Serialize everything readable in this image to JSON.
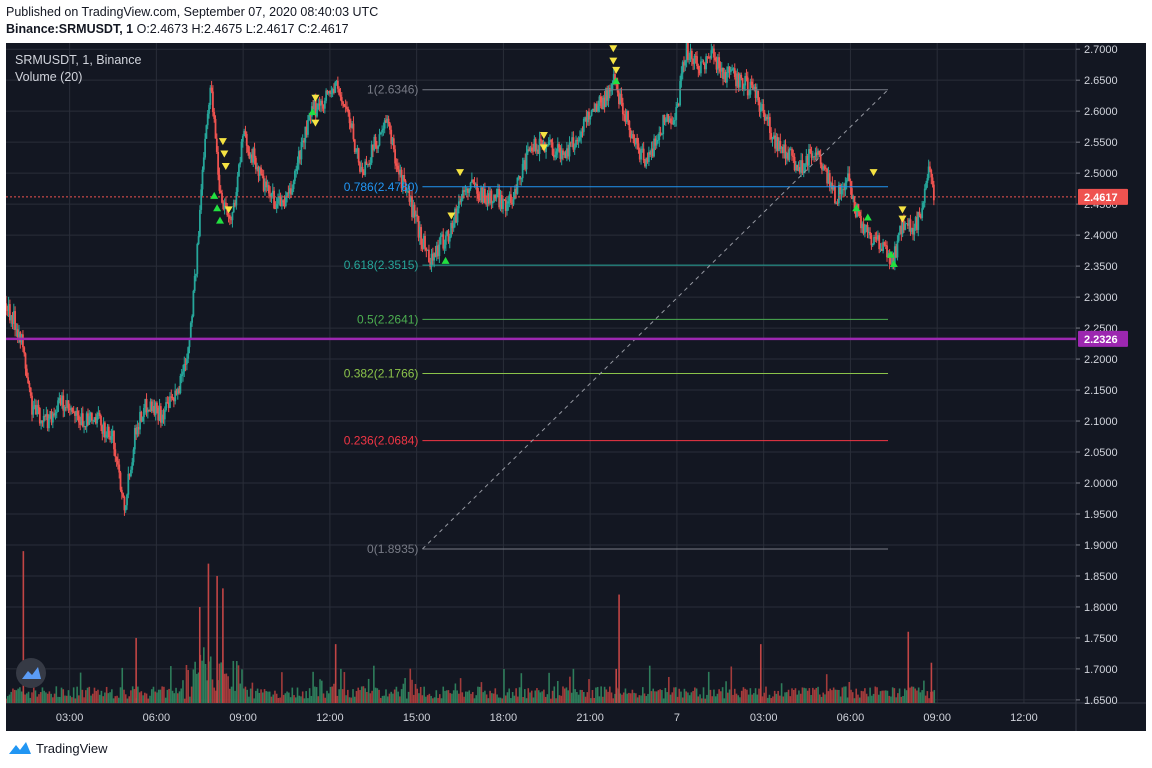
{
  "header": {
    "published": "Published on TradingView.com, September 07, 2020 08:40:03 UTC",
    "symbol_line_prefix": "Binance:SRMUSDT, 1",
    "ohlc": {
      "o": "O:2.4673",
      "h": "H:2.4675",
      "l": "L:2.4617",
      "c": "C:2.4617"
    }
  },
  "footer": {
    "brand": "TradingView"
  },
  "colors": {
    "background": "#131722",
    "grid": "#2a2e39",
    "up": "#26a69a",
    "down": "#ef5350",
    "last_price": "#ef5350",
    "purple_line": "#9c27b0",
    "signal_up": "#22e040",
    "signal_down": "#f5e342"
  },
  "chart_data": {
    "type": "line",
    "title": "SRMUSDT, 1, Binance",
    "subtitle": "Volume (20)",
    "x_ticks": [
      "03:00",
      "06:00",
      "09:00",
      "12:00",
      "15:00",
      "18:00",
      "21:00",
      "7",
      "03:00",
      "06:00",
      "09:00",
      "12:00"
    ],
    "y_ticks": [
      "2.7000",
      "2.6500",
      "2.6000",
      "2.5500",
      "2.5000",
      "2.4500",
      "2.4000",
      "2.3500",
      "2.3000",
      "2.2500",
      "2.2000",
      "2.1500",
      "2.1000",
      "2.0500",
      "2.0000",
      "1.9500",
      "1.9000",
      "1.8500",
      "1.8000",
      "1.7500",
      "1.7000",
      "1.6500"
    ],
    "ylim": [
      1.645,
      2.71
    ],
    "x_range_hours": [
      0.8,
      37.8
    ],
    "last_price": {
      "value": 2.4617,
      "label": "2.4617"
    },
    "horizontal_line": {
      "value": 2.2326,
      "label": "2.2326"
    },
    "fib_levels": [
      {
        "label": "1(2.6346)",
        "value": 2.6346,
        "color": "#787b86"
      },
      {
        "label": "0.786(2.4780)",
        "value": 2.478,
        "color": "#2196f3"
      },
      {
        "label": "0.618(2.3515)",
        "value": 2.3515,
        "color": "#26a69a"
      },
      {
        "label": "0.5(2.2641)",
        "value": 2.2641,
        "color": "#4caf50"
      },
      {
        "label": "0.382(2.1766)",
        "value": 2.1766,
        "color": "#8bc34a"
      },
      {
        "label": "0.236(2.0684)",
        "value": 2.0684,
        "color": "#f23645"
      },
      {
        "label": "0(1.8935)",
        "value": 1.8935,
        "color": "#787b86"
      }
    ],
    "fib_hours": [
      15.2,
      31.3
    ],
    "trend_line": {
      "from": [
        15.2,
        1.8935
      ],
      "to": [
        31.3,
        2.6346
      ]
    },
    "price_path": [
      [
        0.8,
        2.29
      ],
      [
        1.3,
        2.24
      ],
      [
        1.7,
        2.12
      ],
      [
        2.2,
        2.1
      ],
      [
        2.7,
        2.13
      ],
      [
        3.3,
        2.1
      ],
      [
        4.0,
        2.1
      ],
      [
        4.5,
        2.07
      ],
      [
        4.9,
        1.965
      ],
      [
        5.3,
        2.09
      ],
      [
        5.7,
        2.13
      ],
      [
        6.2,
        2.11
      ],
      [
        6.7,
        2.14
      ],
      [
        7.1,
        2.22
      ],
      [
        7.4,
        2.36
      ],
      [
        7.7,
        2.58
      ],
      [
        7.9,
        2.64
      ],
      [
        8.2,
        2.47
      ],
      [
        8.6,
        2.42
      ],
      [
        9.0,
        2.56
      ],
      [
        9.4,
        2.52
      ],
      [
        9.8,
        2.47
      ],
      [
        10.2,
        2.45
      ],
      [
        10.6,
        2.46
      ],
      [
        11.0,
        2.54
      ],
      [
        11.4,
        2.6
      ],
      [
        11.8,
        2.62
      ],
      [
        12.2,
        2.64
      ],
      [
        12.6,
        2.6
      ],
      [
        13.1,
        2.5
      ],
      [
        13.6,
        2.55
      ],
      [
        14.0,
        2.58
      ],
      [
        14.4,
        2.5
      ],
      [
        14.8,
        2.45
      ],
      [
        15.2,
        2.39
      ],
      [
        15.5,
        2.36
      ],
      [
        15.9,
        2.39
      ],
      [
        16.2,
        2.41
      ],
      [
        16.6,
        2.47
      ],
      [
        17.0,
        2.48
      ],
      [
        17.4,
        2.46
      ],
      [
        17.8,
        2.46
      ],
      [
        18.2,
        2.45
      ],
      [
        18.6,
        2.5
      ],
      [
        19.0,
        2.54
      ],
      [
        19.5,
        2.55
      ],
      [
        20.0,
        2.53
      ],
      [
        20.5,
        2.55
      ],
      [
        21.0,
        2.6
      ],
      [
        21.5,
        2.62
      ],
      [
        21.8,
        2.65
      ],
      [
        22.2,
        2.6
      ],
      [
        22.6,
        2.54
      ],
      [
        23.0,
        2.52
      ],
      [
        23.5,
        2.58
      ],
      [
        24.0,
        2.6
      ],
      [
        24.3,
        2.7
      ],
      [
        24.7,
        2.67
      ],
      [
        25.2,
        2.69
      ],
      [
        25.7,
        2.66
      ],
      [
        26.2,
        2.65
      ],
      [
        26.8,
        2.62
      ],
      [
        27.3,
        2.56
      ],
      [
        27.8,
        2.53
      ],
      [
        28.3,
        2.51
      ],
      [
        28.7,
        2.54
      ],
      [
        29.1,
        2.5
      ],
      [
        29.5,
        2.46
      ],
      [
        29.9,
        2.49
      ],
      [
        30.2,
        2.44
      ],
      [
        30.5,
        2.41
      ],
      [
        30.9,
        2.39
      ],
      [
        31.2,
        2.37
      ],
      [
        31.5,
        2.36
      ],
      [
        31.8,
        2.42
      ],
      [
        32.2,
        2.41
      ],
      [
        32.5,
        2.44
      ],
      [
        32.7,
        2.5
      ],
      [
        32.9,
        2.4617
      ]
    ],
    "volume_spikes": [
      [
        1.4,
        1.89
      ],
      [
        7.8,
        1.87
      ],
      [
        8.1,
        1.85
      ],
      [
        8.3,
        1.83
      ],
      [
        22.0,
        1.82
      ],
      [
        7.5,
        1.8
      ],
      [
        32.0,
        1.76
      ],
      [
        5.3,
        1.75
      ],
      [
        26.9,
        1.74
      ],
      [
        12.2,
        1.74
      ],
      [
        21.9,
        1.7
      ],
      [
        32.8,
        1.71
      ]
    ],
    "signals_up": [
      [
        8.0,
        2.465
      ],
      [
        8.1,
        2.445
      ],
      [
        8.2,
        2.425
      ],
      [
        11.4,
        2.6
      ],
      [
        16.0,
        2.36
      ],
      [
        21.9,
        2.65
      ],
      [
        30.2,
        2.445
      ],
      [
        30.6,
        2.43
      ],
      [
        31.4,
        2.37
      ],
      [
        31.5,
        2.355
      ]
    ],
    "signals_down": [
      [
        8.3,
        2.55
      ],
      [
        8.35,
        2.53
      ],
      [
        8.4,
        2.51
      ],
      [
        8.5,
        2.44
      ],
      [
        11.5,
        2.62
      ],
      [
        11.5,
        2.58
      ],
      [
        16.2,
        2.43
      ],
      [
        16.5,
        2.5
      ],
      [
        19.4,
        2.56
      ],
      [
        19.4,
        2.54
      ],
      [
        21.8,
        2.7
      ],
      [
        21.8,
        2.68
      ],
      [
        21.9,
        2.665
      ],
      [
        30.8,
        2.5
      ],
      [
        31.8,
        2.44
      ],
      [
        31.8,
        2.425
      ]
    ]
  }
}
